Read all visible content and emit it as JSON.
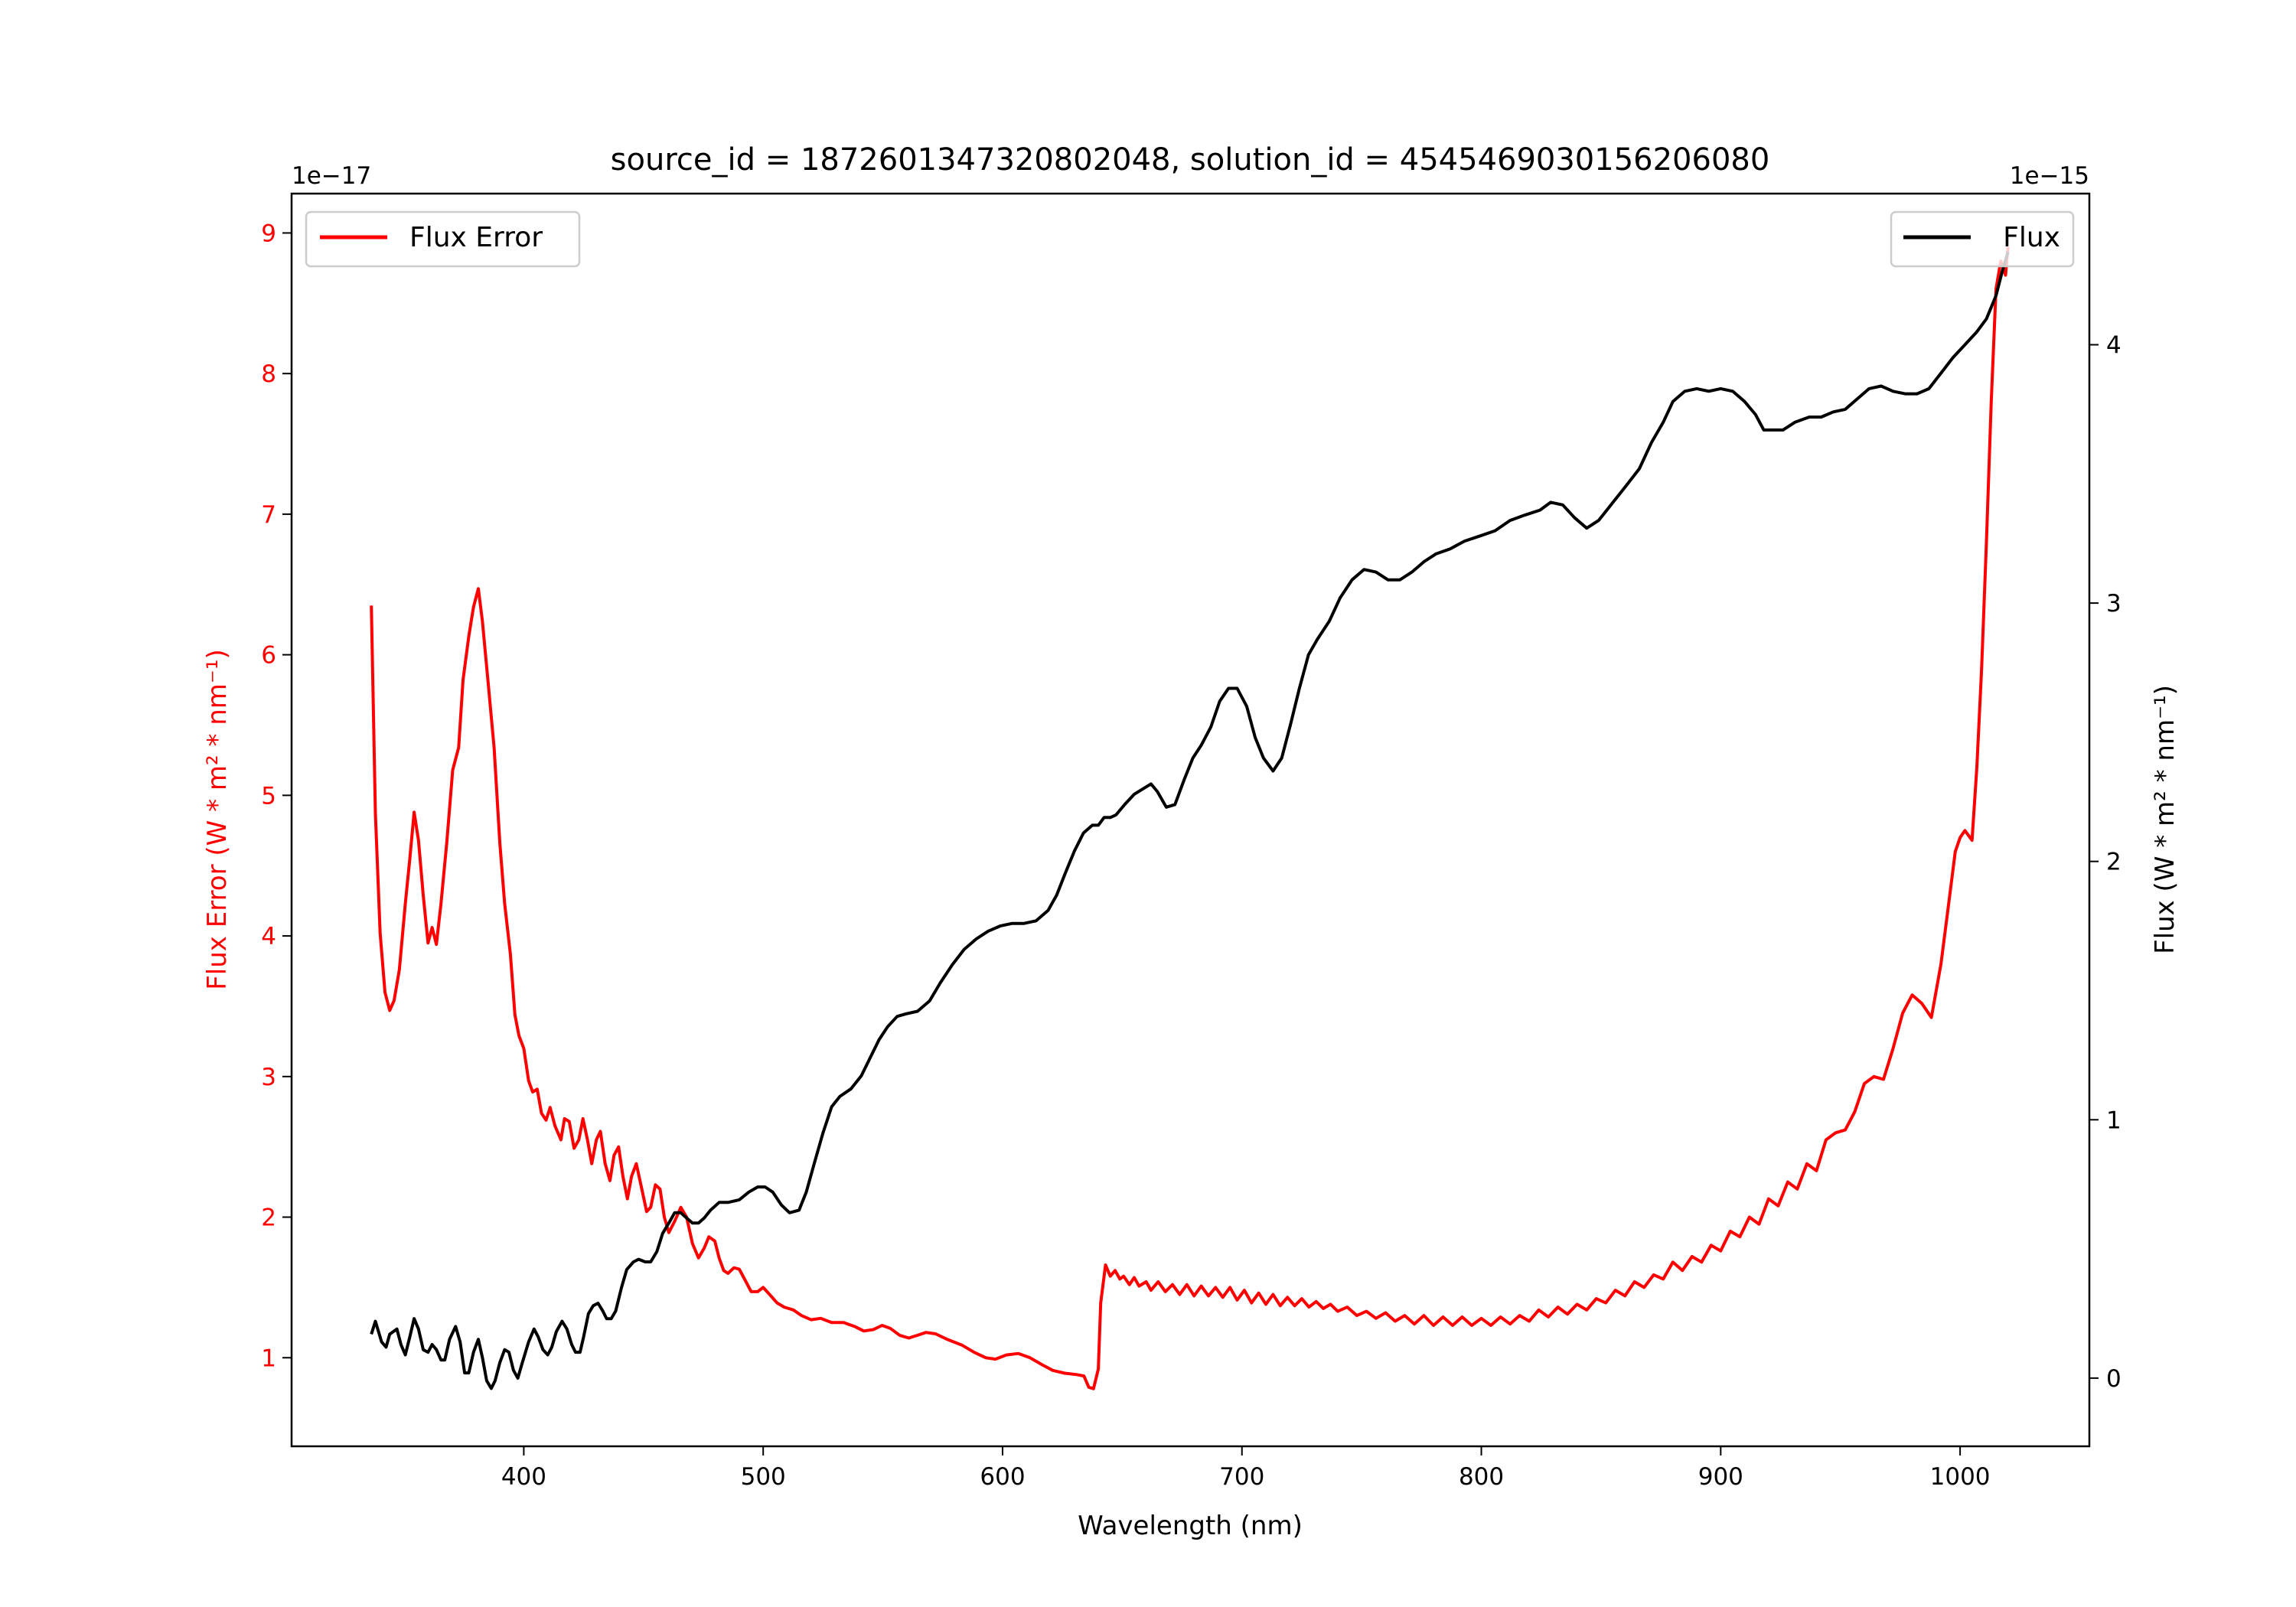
{
  "chart_data": {
    "type": "line",
    "title": "source_id = 1872601347320802048, solution_id = 4545469030156206080",
    "xlabel": "Wavelength (nm)",
    "ylabel_left": "Flux Error (W * m² * nm⁻¹)",
    "ylabel_right": "Flux (W * m² * nm⁻¹)",
    "offset_left": "1e−17",
    "offset_right": "1e−15",
    "xlim": [
      303,
      1054
    ],
    "ylim_left": [
      0.37,
      9.28
    ],
    "ylim_right": [
      -0.264,
      4.585
    ],
    "xticks": [
      400,
      500,
      600,
      700,
      800,
      900,
      1000
    ],
    "yticks_left": [
      1,
      2,
      3,
      4,
      5,
      6,
      7,
      8,
      9
    ],
    "yticks_right": [
      0,
      1,
      2,
      3,
      4
    ],
    "grid": false,
    "colors": {
      "flux_error": "#ff0000",
      "flux": "#000000",
      "left_axis_text": "#ff0000"
    },
    "legend_left": {
      "label": "Flux Error",
      "placement": "upper-left"
    },
    "legend_right": {
      "label": "Flux",
      "placement": "upper-right"
    },
    "series": [
      {
        "name": "Flux Error",
        "axis": "left",
        "x": [
          336.3,
          338,
          340,
          342,
          344,
          345.8,
          348,
          350.5,
          352.4,
          354.2,
          356,
          358,
          360,
          361.7,
          363.5,
          365.4,
          367.8,
          370.3,
          372.8,
          374.6,
          377,
          379,
          381,
          382.7,
          385,
          387.6,
          390,
          392,
          394.4,
          396.3,
          398,
          400,
          402,
          403.7,
          405.6,
          407.4,
          409.3,
          411,
          413,
          415.5,
          417,
          419,
          421,
          423,
          424.7,
          426.6,
          428.4,
          430.3,
          432,
          434,
          436,
          437.7,
          439.6,
          441.4,
          443.3,
          445,
          447,
          448.9,
          451.3,
          453,
          455,
          456.9,
          458.7,
          460.6,
          463,
          465.6,
          468,
          470.5,
          473,
          475.4,
          477.3,
          479.8,
          481.6,
          483.5,
          485.3,
          487.8,
          490,
          492.8,
          495,
          497.7,
          500,
          502.7,
          505.8,
          508.8,
          512.6,
          516,
          520,
          524,
          528.6,
          533.6,
          538.5,
          542,
          546,
          549.7,
          553,
          557,
          560.8,
          564.5,
          568,
          572,
          577,
          583,
          588,
          593,
          597,
          601.6,
          606.6,
          611.5,
          616.5,
          621,
          626,
          631,
          634,
          636,
          638,
          640,
          641,
          643,
          645,
          647,
          649,
          650.6,
          653,
          655,
          657,
          660,
          662,
          665,
          668,
          671,
          674,
          677,
          680,
          683,
          686,
          689,
          692,
          695,
          698,
          701,
          704,
          707,
          710,
          713,
          716,
          719,
          722,
          725,
          728,
          731,
          734,
          737,
          740,
          744,
          748,
          752,
          756,
          760,
          764,
          768,
          772,
          776,
          780,
          784,
          788,
          792,
          796,
          800,
          804,
          808,
          812,
          816,
          820,
          824,
          828,
          832,
          836,
          840,
          844,
          848,
          852,
          856,
          860,
          864,
          868,
          872,
          876,
          880,
          884,
          888,
          892,
          896,
          900,
          904,
          908,
          912,
          916,
          920,
          924,
          928,
          932,
          936,
          940,
          944,
          948,
          952,
          956,
          960,
          964,
          968,
          972,
          976,
          980,
          984,
          988,
          992,
          995,
          998,
          1000,
          1002,
          1005,
          1007,
          1009,
          1011,
          1013,
          1015,
          1017,
          1019,
          1020
        ],
        "y": [
          6.35,
          4.87,
          4.02,
          3.6,
          3.47,
          3.54,
          3.76,
          4.23,
          4.55,
          4.88,
          4.68,
          4.29,
          3.95,
          4.06,
          3.94,
          4.23,
          4.66,
          5.18,
          5.34,
          5.82,
          6.13,
          6.34,
          6.47,
          6.24,
          5.82,
          5.34,
          4.66,
          4.23,
          3.87,
          3.44,
          3.29,
          3.2,
          2.97,
          2.89,
          2.91,
          2.74,
          2.69,
          2.78,
          2.65,
          2.55,
          2.7,
          2.68,
          2.49,
          2.55,
          2.7,
          2.55,
          2.38,
          2.55,
          2.61,
          2.38,
          2.26,
          2.44,
          2.5,
          2.29,
          2.13,
          2.29,
          2.38,
          2.23,
          2.04,
          2.07,
          2.23,
          2.2,
          2.0,
          1.89,
          1.97,
          2.07,
          2.0,
          1.81,
          1.71,
          1.78,
          1.86,
          1.83,
          1.71,
          1.62,
          1.6,
          1.64,
          1.63,
          1.54,
          1.47,
          1.47,
          1.5,
          1.45,
          1.39,
          1.36,
          1.34,
          1.3,
          1.27,
          1.28,
          1.25,
          1.25,
          1.22,
          1.19,
          1.2,
          1.23,
          1.21,
          1.16,
          1.14,
          1.16,
          1.18,
          1.17,
          1.13,
          1.09,
          1.04,
          1.0,
          0.99,
          1.02,
          1.03,
          1.0,
          0.95,
          0.91,
          0.89,
          0.88,
          0.87,
          0.79,
          0.78,
          0.92,
          1.39,
          1.66,
          1.58,
          1.62,
          1.56,
          1.58,
          1.52,
          1.57,
          1.51,
          1.54,
          1.48,
          1.54,
          1.47,
          1.52,
          1.45,
          1.52,
          1.44,
          1.51,
          1.44,
          1.5,
          1.43,
          1.5,
          1.41,
          1.48,
          1.39,
          1.46,
          1.38,
          1.45,
          1.37,
          1.43,
          1.37,
          1.42,
          1.36,
          1.4,
          1.35,
          1.38,
          1.33,
          1.36,
          1.3,
          1.33,
          1.28,
          1.32,
          1.26,
          1.3,
          1.24,
          1.3,
          1.23,
          1.29,
          1.23,
          1.29,
          1.23,
          1.28,
          1.23,
          1.29,
          1.24,
          1.3,
          1.26,
          1.34,
          1.29,
          1.36,
          1.31,
          1.38,
          1.34,
          1.42,
          1.39,
          1.48,
          1.44,
          1.54,
          1.5,
          1.59,
          1.56,
          1.68,
          1.62,
          1.72,
          1.68,
          1.8,
          1.76,
          1.9,
          1.86,
          2.0,
          1.95,
          2.13,
          2.08,
          2.25,
          2.2,
          2.38,
          2.33,
          2.55,
          2.6,
          2.62,
          2.75,
          2.95,
          3.0,
          2.98,
          3.2,
          3.45,
          3.58,
          3.52,
          3.42,
          3.8,
          4.2,
          4.6,
          4.7,
          4.75,
          4.68,
          5.2,
          5.9,
          6.8,
          7.8,
          8.6,
          8.8,
          8.7,
          8.9
        ]
      },
      {
        "name": "Flux",
        "axis": "right",
        "x": [
          336.3,
          338,
          340.6,
          342.5,
          344,
          347,
          348.7,
          350.5,
          352.4,
          354.2,
          356,
          358,
          360,
          361.7,
          363.5,
          365.4,
          367,
          369,
          371.5,
          373.4,
          375.3,
          377,
          379,
          381,
          382.7,
          384.5,
          386.4,
          388,
          390,
          392,
          393.8,
          395.7,
          397.5,
          399.4,
          402,
          404.3,
          406,
          408,
          410,
          411.7,
          413.6,
          416,
          418,
          420,
          421.6,
          423.5,
          425,
          427,
          429,
          431,
          433,
          434.6,
          436.5,
          438.4,
          440.8,
          443,
          445.8,
          448,
          450.7,
          453,
          455.6,
          458,
          460.6,
          463,
          465.6,
          468,
          470.5,
          473,
          475.4,
          478,
          481.6,
          485.3,
          490,
          494,
          497.7,
          500.8,
          504,
          507.6,
          511,
          515,
          518,
          521,
          525,
          528.6,
          532,
          536.7,
          541,
          544.7,
          548.4,
          552,
          556,
          559.6,
          564.5,
          569.5,
          574,
          579,
          584,
          589,
          594,
          599,
          604,
          609,
          614,
          619,
          622.6,
          626,
          630,
          633.8,
          637.5,
          640,
          642.4,
          645,
          647.4,
          651,
          655,
          658.5,
          662,
          664.7,
          668.4,
          672,
          676,
          679.5,
          683,
          687,
          690.7,
          694.4,
          698,
          702,
          705.5,
          709,
          713,
          716.6,
          720.3,
          724,
          727.8,
          731.5,
          736.5,
          741,
          746,
          751,
          756,
          761,
          766,
          771,
          776,
          781,
          787,
          793,
          799.5,
          805.7,
          812,
          818,
          824.5,
          829,
          834,
          839,
          844,
          849,
          855,
          861,
          866,
          871,
          876,
          880,
          885,
          890,
          895,
          900,
          905,
          910,
          914.5,
          918,
          922,
          926,
          931,
          937,
          942,
          947,
          952,
          957,
          962,
          967,
          972,
          977,
          982,
          987,
          992,
          997,
          1002,
          1007,
          1011,
          1015,
          1017.5,
          1020
        ],
        "y": [
          0.17,
          0.22,
          0.14,
          0.12,
          0.17,
          0.19,
          0.13,
          0.09,
          0.16,
          0.23,
          0.19,
          0.11,
          0.1,
          0.13,
          0.11,
          0.07,
          0.07,
          0.15,
          0.2,
          0.14,
          0.02,
          0.02,
          0.1,
          0.15,
          0.08,
          -0.01,
          -0.04,
          -0.01,
          0.06,
          0.11,
          0.1,
          0.03,
          0.0,
          0.06,
          0.14,
          0.19,
          0.16,
          0.11,
          0.09,
          0.12,
          0.18,
          0.22,
          0.19,
          0.13,
          0.1,
          0.1,
          0.16,
          0.25,
          0.28,
          0.29,
          0.26,
          0.23,
          0.23,
          0.26,
          0.35,
          0.42,
          0.45,
          0.46,
          0.45,
          0.45,
          0.49,
          0.56,
          0.6,
          0.64,
          0.64,
          0.62,
          0.6,
          0.6,
          0.62,
          0.65,
          0.68,
          0.68,
          0.69,
          0.72,
          0.74,
          0.74,
          0.72,
          0.67,
          0.64,
          0.65,
          0.72,
          0.82,
          0.95,
          1.05,
          1.09,
          1.12,
          1.17,
          1.24,
          1.31,
          1.36,
          1.4,
          1.41,
          1.42,
          1.46,
          1.53,
          1.6,
          1.66,
          1.7,
          1.73,
          1.75,
          1.76,
          1.76,
          1.77,
          1.81,
          1.87,
          1.95,
          2.04,
          2.11,
          2.14,
          2.14,
          2.17,
          2.17,
          2.18,
          2.22,
          2.26,
          2.28,
          2.3,
          2.27,
          2.21,
          2.22,
          2.32,
          2.4,
          2.45,
          2.52,
          2.62,
          2.67,
          2.67,
          2.6,
          2.48,
          2.4,
          2.35,
          2.4,
          2.53,
          2.67,
          2.8,
          2.86,
          2.93,
          3.02,
          3.09,
          3.13,
          3.12,
          3.09,
          3.09,
          3.12,
          3.16,
          3.19,
          3.21,
          3.24,
          3.26,
          3.28,
          3.32,
          3.34,
          3.36,
          3.39,
          3.38,
          3.33,
          3.29,
          3.32,
          3.39,
          3.46,
          3.52,
          3.62,
          3.7,
          3.78,
          3.82,
          3.83,
          3.82,
          3.83,
          3.82,
          3.78,
          3.73,
          3.67,
          3.67,
          3.67,
          3.7,
          3.72,
          3.72,
          3.74,
          3.75,
          3.79,
          3.83,
          3.84,
          3.82,
          3.81,
          3.81,
          3.83,
          3.89,
          3.95,
          4.0,
          4.05,
          4.1,
          4.19,
          4.28,
          4.36
        ]
      }
    ]
  }
}
